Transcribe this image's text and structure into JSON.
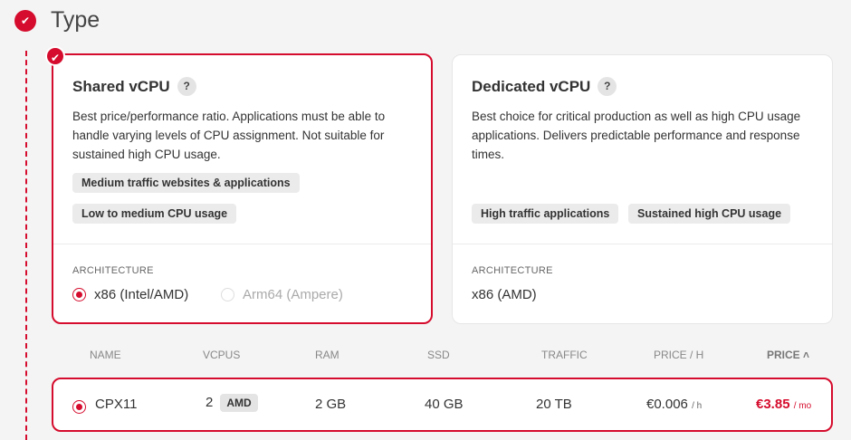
{
  "section": {
    "title": "Type"
  },
  "cards": [
    {
      "title": "Shared vCPU",
      "help": "?",
      "description": "Best price/performance ratio. Applications must be able to handle varying levels of CPU assignment. Not suitable for sustained high CPU usage.",
      "tags": [
        "Medium traffic websites & applications",
        "Low to medium CPU usage"
      ],
      "architecture_label": "ARCHITECTURE",
      "options": [
        "x86 (Intel/AMD)",
        "Arm64 (Ampere)"
      ],
      "selected": true
    },
    {
      "title": "Dedicated vCPU",
      "help": "?",
      "description": "Best choice for critical production as well as high CPU usage applications. Delivers predictable performance and response times.",
      "tags": [
        "High traffic applications",
        "Sustained high CPU usage"
      ],
      "architecture_label": "ARCHITECTURE",
      "architecture_value": "x86 (AMD)",
      "selected": false
    }
  ],
  "table": {
    "headers": [
      "NAME",
      "VCPUS",
      "RAM",
      "SSD",
      "TRAFFIC",
      "PRICE / H",
      "PRICE"
    ],
    "sort_icon": "chevron-up-icon",
    "rows": [
      {
        "name": "CPX11",
        "vcpus": "2",
        "badge": "AMD",
        "ram": "2 GB",
        "ssd": "40 GB",
        "traffic": "20 TB",
        "price_h": "€0.006",
        "price_h_unit": "/ h",
        "price": "€3.85",
        "price_unit": "/ mo"
      }
    ]
  },
  "colors": {
    "accent": "#d50c2d",
    "background": "#f4f4f4"
  }
}
